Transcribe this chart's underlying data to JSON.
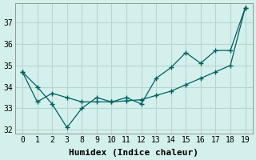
{
  "xlabel": "Humidex (Indice chaleur)",
  "background_color": "#d4f0ec",
  "grid_color": "#b8d4d0",
  "line_color": "#006060",
  "xtick_labels": [
    "0",
    "1",
    "2",
    "3",
    "8",
    "9",
    "10",
    "11",
    "12",
    "13",
    "14",
    "15",
    "16",
    "17",
    "18",
    "19"
  ],
  "y_line1": [
    34.7,
    34.0,
    33.2,
    32.1,
    33.0,
    33.5,
    33.3,
    33.5,
    33.2,
    34.4,
    34.9,
    35.6,
    35.1,
    35.7,
    35.7,
    37.7
  ],
  "y_line2": [
    34.7,
    33.3,
    33.7,
    33.5,
    33.3,
    33.3,
    33.3,
    33.35,
    33.4,
    33.6,
    33.8,
    34.1,
    34.4,
    34.7,
    35.0,
    37.7
  ],
  "ylim": [
    31.8,
    37.9
  ],
  "yticks": [
    32,
    33,
    34,
    35,
    36,
    37
  ],
  "ytick_labels": [
    "32",
    "33",
    "34",
    "35",
    "36",
    "37"
  ],
  "title_fontsize": 7,
  "axis_fontsize": 7,
  "xlabel_fontsize": 8
}
